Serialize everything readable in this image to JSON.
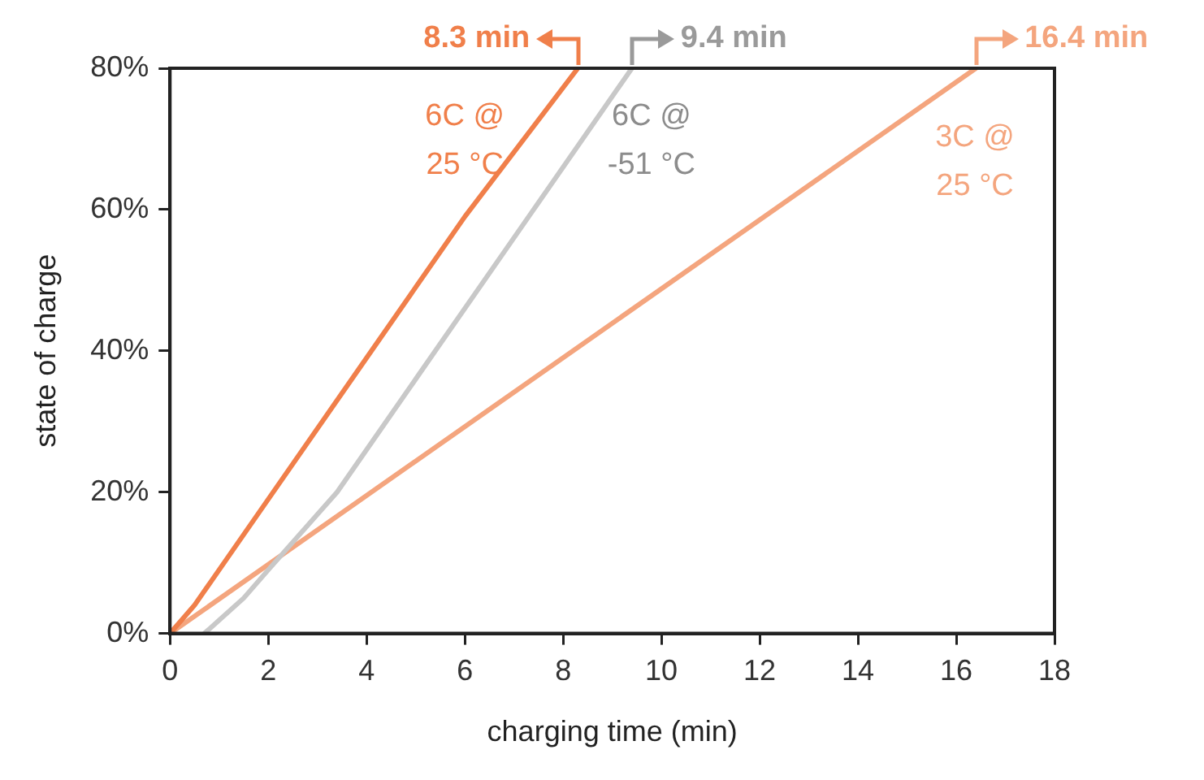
{
  "chart_data": {
    "type": "line",
    "xlabel": "charging time (min)",
    "ylabel": "state of charge",
    "xlim": [
      0,
      18
    ],
    "xticks": [
      0,
      2,
      4,
      6,
      8,
      10,
      12,
      14,
      16,
      18
    ],
    "ylim": [
      0,
      80
    ],
    "yticks": [
      {
        "value": 0,
        "label": "0%"
      },
      {
        "value": 20,
        "label": "20%"
      },
      {
        "value": 40,
        "label": "40%"
      },
      {
        "value": 60,
        "label": "60%"
      },
      {
        "value": 80,
        "label": "80%"
      }
    ],
    "grid": false,
    "legend": false,
    "marker": "none",
    "line_style": "solid",
    "series": [
      {
        "name": "6C @ 25 °C",
        "color": "#f07f4a",
        "x": [
          0,
          0.5,
          1.5,
          2,
          4,
          6,
          8.3
        ],
        "values": [
          0,
          4,
          14,
          19,
          39,
          59,
          80
        ]
      },
      {
        "name": "6C @ -51 °C",
        "color": "#c8c8c8",
        "x": [
          0.7,
          1.5,
          2,
          3.4,
          5.4,
          7.4,
          9.4
        ],
        "values": [
          0,
          5,
          9,
          20,
          40,
          60,
          80
        ]
      },
      {
        "name": "3C @ 25 °C",
        "color": "#f4a57e",
        "x": [
          0,
          16.4
        ],
        "values": [
          0,
          80
        ]
      }
    ],
    "annotations": [
      {
        "text": "8.3 min",
        "x": 8.3,
        "y": 80
      },
      {
        "text": "9.4 min",
        "x": 9.4,
        "y": 80
      },
      {
        "text": "16.4 min",
        "x": 16.4,
        "y": 80
      }
    ]
  }
}
